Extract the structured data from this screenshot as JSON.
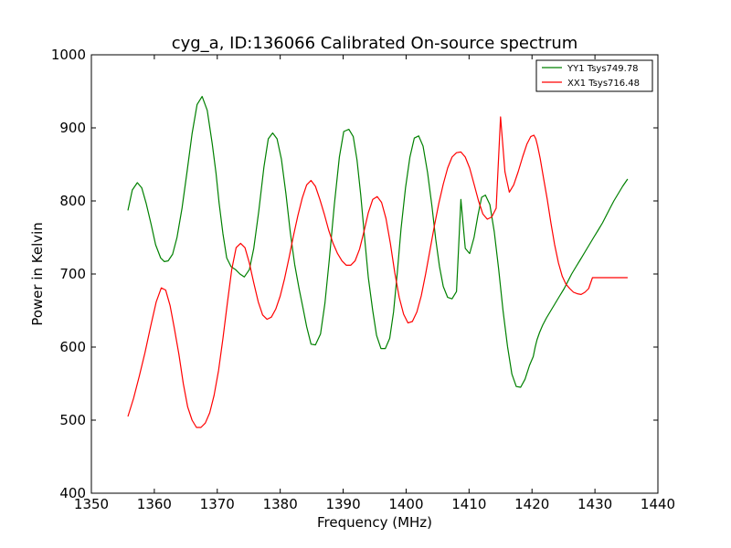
{
  "chart_data": {
    "type": "line",
    "title": "cyg_a, ID:136066 Calibrated On-source spectrum",
    "xlabel": "Frequency (MHz)",
    "ylabel": "Power in Kelvin",
    "xlim": [
      1350,
      1440
    ],
    "ylim": [
      400,
      1000
    ],
    "xticks": [
      1350,
      1360,
      1370,
      1380,
      1390,
      1400,
      1410,
      1420,
      1430,
      1440
    ],
    "yticks": [
      400,
      500,
      600,
      700,
      800,
      900,
      1000
    ],
    "grid": false,
    "legend_position": "top-right",
    "series": [
      {
        "name": "YY1 Tsys749.78",
        "color": "#008000",
        "x": [
          1355.8,
          1356.5,
          1357.3,
          1358.0,
          1358.7,
          1359.5,
          1360.2,
          1361.0,
          1361.6,
          1362.2,
          1362.9,
          1363.6,
          1364.4,
          1365.2,
          1366.0,
          1366.8,
          1367.6,
          1368.4,
          1369.2,
          1369.8,
          1370.3,
          1370.9,
          1371.5,
          1372.2,
          1372.9,
          1373.6,
          1374.3,
          1375.1,
          1375.8,
          1376.6,
          1377.4,
          1378.1,
          1378.8,
          1379.5,
          1380.2,
          1380.9,
          1381.6,
          1382.3,
          1383.0,
          1383.6,
          1384.2,
          1384.9,
          1385.6,
          1386.4,
          1387.1,
          1387.8,
          1388.6,
          1389.4,
          1390.1,
          1390.9,
          1391.6,
          1392.2,
          1392.8,
          1393.4,
          1394.0,
          1394.7,
          1395.3,
          1396.0,
          1396.7,
          1397.4,
          1398.0,
          1398.6,
          1399.2,
          1399.9,
          1400.6,
          1401.3,
          1402.0,
          1402.7,
          1403.4,
          1404.1,
          1404.7,
          1405.3,
          1405.9,
          1406.6,
          1407.3,
          1408.0,
          1408.7,
          1409.4,
          1410.1,
          1410.8,
          1411.4,
          1412.0,
          1412.6,
          1413.3,
          1414.0,
          1414.7,
          1415.4,
          1416.1,
          1416.8,
          1417.5,
          1418.2,
          1418.9,
          1419.6,
          1420.2,
          1420.5,
          1420.8,
          1421.2,
          1421.7,
          1422.3,
          1423.0,
          1423.7,
          1424.4,
          1425.1,
          1425.7,
          1426.3,
          1427.0,
          1427.7,
          1428.4,
          1429.1,
          1429.8,
          1430.5,
          1431.2,
          1431.8,
          1432.4,
          1433.0,
          1433.7,
          1434.4,
          1435.2
        ],
        "y": [
          787,
          815,
          825,
          818,
          797,
          768,
          740,
          722,
          717,
          718,
          727,
          750,
          790,
          840,
          892,
          932,
          943,
          924,
          878,
          838,
          797,
          755,
          722,
          710,
          706,
          700,
          696,
          706,
          735,
          786,
          846,
          885,
          893,
          885,
          857,
          810,
          757,
          713,
          680,
          654,
          628,
          604,
          603,
          618,
          660,
          720,
          795,
          860,
          895,
          898,
          888,
          856,
          808,
          750,
          695,
          650,
          616,
          598,
          598,
          612,
          648,
          702,
          762,
          818,
          860,
          886,
          889,
          875,
          839,
          793,
          748,
          710,
          683,
          668,
          666,
          676,
          802,
          735,
          728,
          750,
          780,
          805,
          808,
          795,
          758,
          707,
          650,
          601,
          563,
          546,
          545,
          556,
          575,
          587,
          600,
          610,
          620,
          630,
          640,
          650,
          660,
          670,
          680,
          690,
          700,
          710,
          720,
          730,
          740,
          750,
          760,
          770,
          780,
          790,
          800,
          810,
          820,
          830
        ]
      },
      {
        "name": "XX1 Tsys716.48",
        "color": "#ff0000",
        "x": [
          1355.8,
          1356.7,
          1357.6,
          1358.5,
          1359.4,
          1360.3,
          1361.1,
          1361.8,
          1362.5,
          1363.2,
          1363.9,
          1364.6,
          1365.3,
          1366.0,
          1366.7,
          1367.4,
          1368.1,
          1368.8,
          1369.5,
          1370.2,
          1370.9,
          1371.6,
          1372.3,
          1373.0,
          1373.7,
          1374.4,
          1375.1,
          1375.8,
          1376.5,
          1377.2,
          1377.9,
          1378.6,
          1379.3,
          1380.0,
          1380.7,
          1381.4,
          1382.1,
          1382.8,
          1383.5,
          1384.2,
          1384.9,
          1385.6,
          1386.3,
          1387.0,
          1387.7,
          1388.4,
          1389.1,
          1389.8,
          1390.5,
          1391.2,
          1391.9,
          1392.6,
          1393.3,
          1394.0,
          1394.7,
          1395.4,
          1396.1,
          1396.8,
          1397.5,
          1398.2,
          1398.9,
          1399.6,
          1400.3,
          1401.0,
          1401.7,
          1402.4,
          1403.1,
          1403.8,
          1404.5,
          1405.2,
          1405.9,
          1406.6,
          1407.3,
          1408.0,
          1408.7,
          1409.4,
          1410.1,
          1410.8,
          1411.5,
          1412.2,
          1412.9,
          1413.6,
          1414.3,
          1415.0,
          1415.7,
          1416.4,
          1417.1,
          1417.8,
          1418.5,
          1419.2,
          1419.8,
          1420.3,
          1420.6,
          1420.9,
          1421.3,
          1421.8,
          1422.4,
          1423.0,
          1423.6,
          1424.2,
          1424.8,
          1425.4,
          1426.0,
          1426.6,
          1427.2,
          1427.8,
          1428.4,
          1429.0,
          1429.6,
          1430.2,
          1430.8,
          1431.4,
          1432.0,
          1432.6,
          1433.2,
          1433.8,
          1434.4,
          1435.0,
          1435.2
        ],
        "y": [
          505,
          530,
          560,
          592,
          628,
          662,
          681,
          678,
          657,
          625,
          590,
          550,
          518,
          500,
          490,
          490,
          496,
          510,
          534,
          568,
          612,
          660,
          706,
          736,
          742,
          736,
          715,
          688,
          662,
          644,
          638,
          641,
          652,
          670,
          694,
          722,
          752,
          780,
          804,
          822,
          828,
          820,
          802,
          782,
          760,
          742,
          728,
          718,
          712,
          712,
          718,
          734,
          758,
          784,
          802,
          806,
          798,
          776,
          742,
          702,
          668,
          645,
          633,
          635,
          648,
          670,
          700,
          733,
          766,
          797,
          823,
          845,
          860,
          866,
          867,
          860,
          845,
          823,
          800,
          782,
          775,
          778,
          790,
          915,
          840,
          812,
          822,
          840,
          860,
          878,
          888,
          890,
          885,
          875,
          858,
          833,
          803,
          770,
          740,
          715,
          697,
          686,
          680,
          675,
          673,
          672,
          675,
          680,
          695,
          695,
          695,
          695,
          695,
          695,
          695,
          695,
          695,
          695,
          695
        ]
      }
    ]
  }
}
